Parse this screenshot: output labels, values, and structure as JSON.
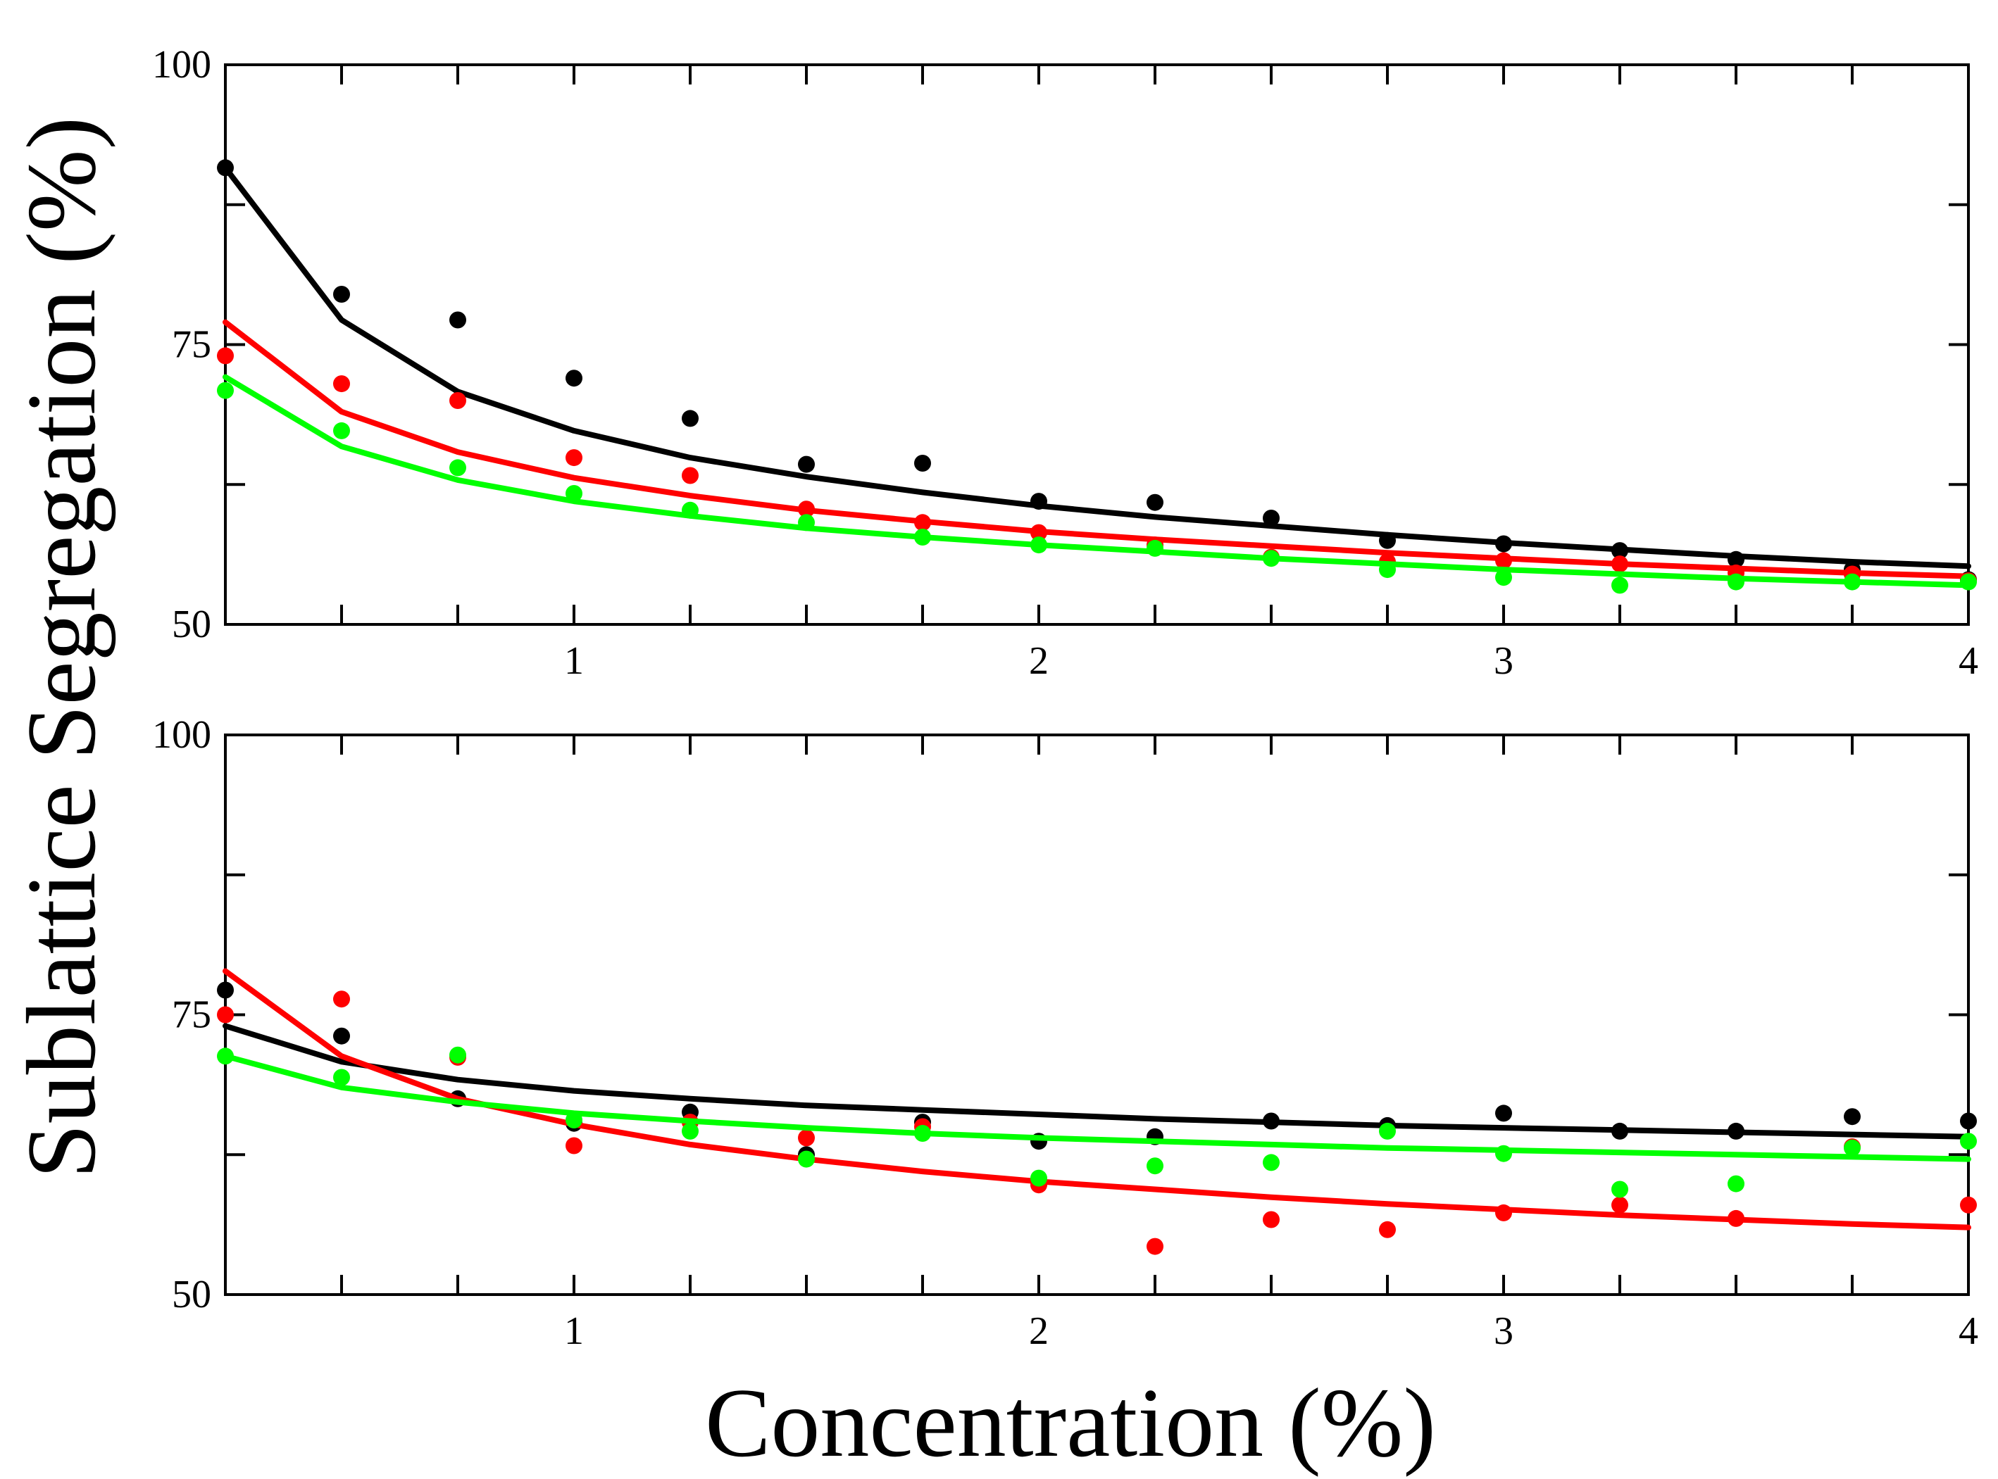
{
  "chart_data": {
    "type": "scatter",
    "xlabel": "Concentration (%)",
    "ylabel": "Sublattice Segregation (%)",
    "colors": {
      "black": "#000000",
      "red": "#ff0000",
      "green": "#00ff00"
    },
    "x_ticks": [
      {
        "value": 1,
        "label": "1"
      },
      {
        "value": 2,
        "label": "2"
      },
      {
        "value": 3,
        "label": "3"
      },
      {
        "value": 4,
        "label": "4"
      }
    ],
    "y_ticks": [
      {
        "value": 50,
        "label": "50"
      },
      {
        "value": 75,
        "label": "75"
      },
      {
        "value": 100,
        "label": "100"
      }
    ],
    "panels": [
      {
        "name": "top",
        "xlim": [
          0.25,
          4
        ],
        "ylim": [
          50,
          100
        ],
        "x": [
          0.25,
          0.5,
          0.75,
          1.0,
          1.25,
          1.5,
          1.75,
          2.0,
          2.25,
          2.5,
          2.75,
          3.0,
          3.25,
          3.5,
          3.75,
          4.0
        ],
        "series": [
          {
            "name": "black",
            "color": "#000000",
            "points": [
              90.8,
              79.5,
              77.2,
              72.0,
              68.4,
              64.3,
              64.4,
              61.0,
              60.9,
              59.5,
              57.5,
              57.2,
              56.6,
              55.8,
              54.9,
              54.0
            ],
            "fit": [
              90.8,
              77.2,
              70.8,
              67.3,
              64.9,
              63.2,
              61.8,
              60.6,
              59.6,
              58.8,
              58.0,
              57.3,
              56.7,
              56.1,
              55.6,
              55.2
            ]
          },
          {
            "name": "red",
            "color": "#ff0000",
            "points": [
              74.0,
              71.5,
              70.0,
              64.9,
              63.3,
              60.3,
              59.1,
              58.2,
              57.1,
              56.0,
              55.6,
              55.7,
              55.4,
              54.6,
              54.5,
              53.9
            ],
            "fit": [
              77.0,
              69.0,
              65.4,
              63.1,
              61.5,
              60.2,
              59.2,
              58.3,
              57.6,
              57.0,
              56.4,
              55.9,
              55.4,
              55.0,
              54.6,
              54.3
            ]
          },
          {
            "name": "green",
            "color": "#00ff00",
            "points": [
              70.9,
              67.3,
              64.0,
              61.7,
              60.2,
              59.1,
              57.8,
              57.1,
              56.8,
              55.9,
              54.9,
              54.2,
              53.5,
              53.8,
              53.8,
              53.8
            ],
            "fit": [
              72.1,
              65.9,
              62.9,
              61.0,
              59.7,
              58.6,
              57.8,
              57.1,
              56.5,
              55.9,
              55.4,
              54.9,
              54.5,
              54.1,
              53.8,
              53.5
            ]
          }
        ]
      },
      {
        "name": "bottom",
        "xlim": [
          0.25,
          4
        ],
        "ylim": [
          50,
          100
        ],
        "x": [
          0.25,
          0.5,
          0.75,
          1.0,
          1.25,
          1.5,
          1.75,
          2.0,
          2.25,
          2.5,
          2.75,
          3.0,
          3.25,
          3.5,
          3.75,
          4.0
        ],
        "series": [
          {
            "name": "black",
            "color": "#000000",
            "points": [
              77.2,
              73.1,
              67.5,
              65.3,
              66.3,
              62.5,
              65.4,
              63.7,
              64.1,
              65.5,
              65.1,
              66.2,
              64.6,
              64.6,
              65.9,
              65.5
            ],
            "fit": [
              74.0,
              70.8,
              69.2,
              68.2,
              67.5,
              66.9,
              66.5,
              66.1,
              65.7,
              65.4,
              65.1,
              64.9,
              64.7,
              64.5,
              64.3,
              64.1
            ]
          },
          {
            "name": "red",
            "color": "#ff0000",
            "points": [
              75.0,
              76.4,
              71.2,
              63.3,
              65.4,
              64.0,
              65.0,
              59.8,
              54.3,
              56.7,
              55.8,
              57.3,
              58.0,
              56.8,
              63.2,
              58.0
            ],
            "fit": [
              78.9,
              71.3,
              67.5,
              65.2,
              63.4,
              62.1,
              61.0,
              60.1,
              59.4,
              58.7,
              58.1,
              57.6,
              57.1,
              56.7,
              56.3,
              56.0
            ]
          },
          {
            "name": "green",
            "color": "#00ff00",
            "points": [
              71.3,
              69.4,
              71.4,
              65.6,
              64.6,
              62.1,
              64.4,
              60.4,
              61.5,
              61.8,
              64.6,
              62.6,
              59.4,
              59.9,
              63.1,
              63.7
            ],
            "fit": [
              71.3,
              68.5,
              67.2,
              66.2,
              65.5,
              64.9,
              64.4,
              64.0,
              63.7,
              63.4,
              63.1,
              62.9,
              62.7,
              62.5,
              62.3,
              62.1
            ]
          }
        ]
      }
    ]
  }
}
